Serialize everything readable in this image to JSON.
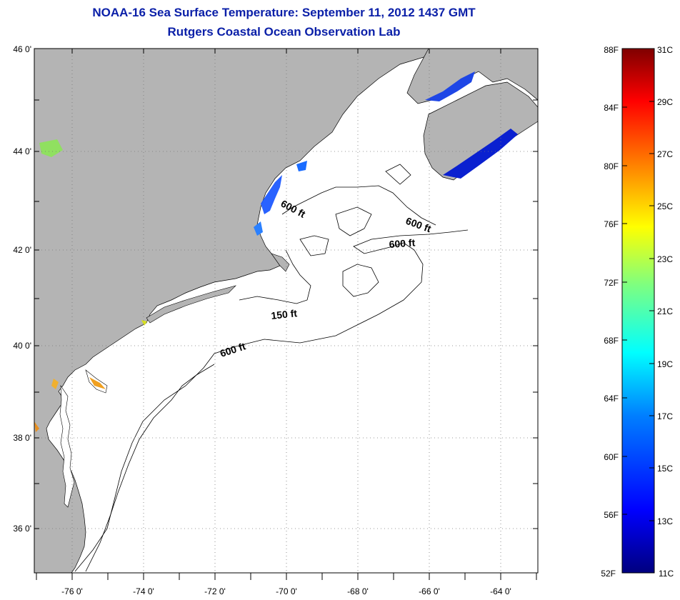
{
  "title": {
    "line1": "NOAA-16 Sea Surface Temperature:  September 11, 2012 1437 GMT",
    "line2": "Rutgers Coastal Ocean Observation Lab"
  },
  "map": {
    "lat_labels": [
      "46 0'",
      "44 0'",
      "42 0'",
      "40 0'",
      "38 0'",
      "36 0'"
    ],
    "lon_labels": [
      "-76 0'",
      "-74 0'",
      "-72 0'",
      "-70 0'",
      "-68 0'",
      "-66 0'",
      "-64 0'"
    ],
    "contour_labels": [
      "600 ft",
      "600 ft",
      "600 ft",
      "150 ft",
      "600 ft"
    ],
    "land_color": "#b4b4b4",
    "water_color": "#ffffff",
    "grid": "dotted"
  },
  "colorbar": {
    "fahrenheit_labels": [
      "88F",
      "84F",
      "80F",
      "76F",
      "72F",
      "68F",
      "64F",
      "60F",
      "56F",
      "52F"
    ],
    "celsius_labels": [
      "31C",
      "29C",
      "27C",
      "25C",
      "23C",
      "21C",
      "19C",
      "17C",
      "15C",
      "13C",
      "11C"
    ],
    "colors": [
      "#00007f",
      "#0000ff",
      "#007fff",
      "#00ffff",
      "#7fff7f",
      "#ffff00",
      "#ff7f00",
      "#ff0000",
      "#7f0000"
    ]
  }
}
